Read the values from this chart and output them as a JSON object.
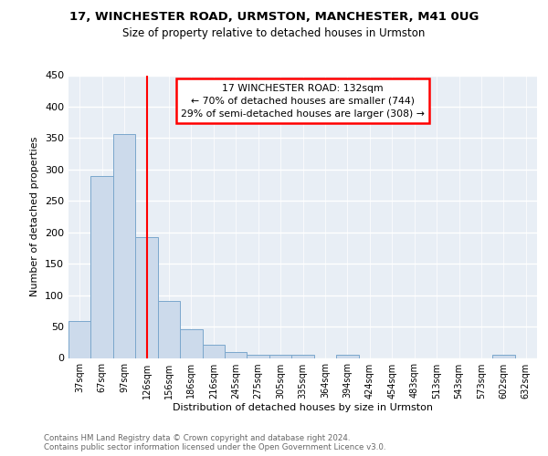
{
  "title1": "17, WINCHESTER ROAD, URMSTON, MANCHESTER, M41 0UG",
  "title2": "Size of property relative to detached houses in Urmston",
  "xlabel": "Distribution of detached houses by size in Urmston",
  "ylabel": "Number of detached properties",
  "categories": [
    "37sqm",
    "67sqm",
    "97sqm",
    "126sqm",
    "156sqm",
    "186sqm",
    "216sqm",
    "245sqm",
    "275sqm",
    "305sqm",
    "335sqm",
    "364sqm",
    "394sqm",
    "424sqm",
    "454sqm",
    "483sqm",
    "513sqm",
    "543sqm",
    "573sqm",
    "602sqm",
    "632sqm"
  ],
  "values": [
    59,
    289,
    356,
    193,
    91,
    46,
    21,
    9,
    5,
    5,
    5,
    0,
    5,
    0,
    0,
    0,
    0,
    0,
    0,
    5,
    0
  ],
  "bar_color": "#ccdaeb",
  "bar_edge_color": "#7ba7cc",
  "red_line_index": 3,
  "annotation_text": "17 WINCHESTER ROAD: 132sqm\n← 70% of detached houses are smaller (744)\n29% of semi-detached houses are larger (308) →",
  "annotation_box_color": "white",
  "annotation_box_edge_color": "red",
  "background_color": "#e8eef5",
  "grid_color": "white",
  "footnote_line1": "Contains HM Land Registry data © Crown copyright and database right 2024.",
  "footnote_line2": "Contains public sector information licensed under the Open Government Licence v3.0.",
  "ylim": [
    0,
    450
  ],
  "yticks": [
    0,
    50,
    100,
    150,
    200,
    250,
    300,
    350,
    400,
    450
  ]
}
